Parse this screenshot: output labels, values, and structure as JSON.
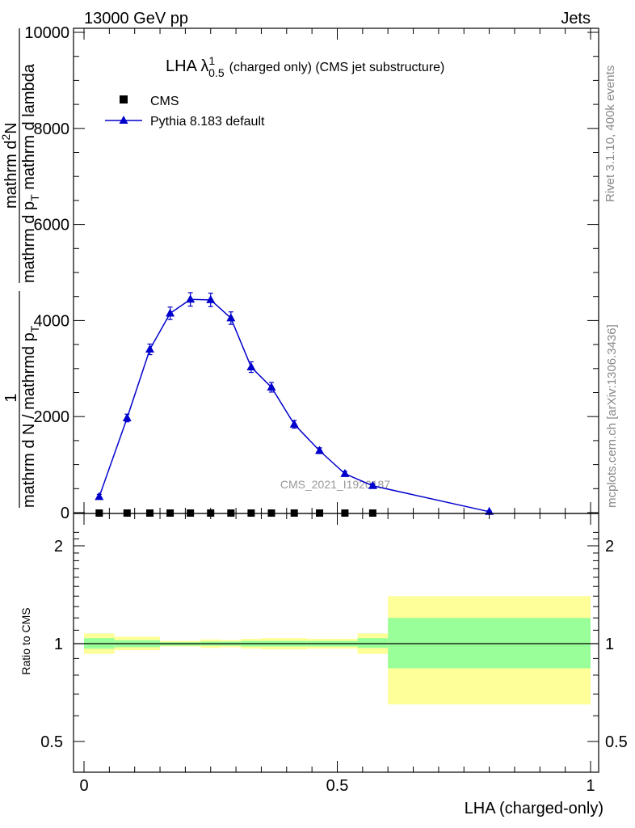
{
  "header": {
    "left": "13000 GeV pp",
    "right": "Jets"
  },
  "side": {
    "rivet": "Rivet 3.1.10,  400k events",
    "mcplots": "mcplots.cern.ch [arXiv:1306.3436]"
  },
  "colors": {
    "mc_line": "#0000cc",
    "band_stat": "#99ff99",
    "band_total": "#ffff99",
    "data_marker": "#000000"
  },
  "chart_data": [
    {
      "type": "line",
      "panel": "main",
      "title_main": "LHA λ",
      "title_sup": "1",
      "title_sub": "0.5",
      "title_rest": "(charged only) (CMS jet substructure)",
      "ylabel_num1": "1",
      "ylabel_den1": "mathrm d N / mathrmd p",
      "ylabel_den1_sub": "T",
      "ylabel_num2": "mathrm d",
      "ylabel_num2_sup": "2",
      "ylabel_num2_rest": "N",
      "ylabel_den2": "mathrm d p",
      "ylabel_den2_sub": "T",
      "ylabel_den2_rest": " mathrm d lambda",
      "ylim": [
        0,
        10000
      ],
      "xlim": [
        0,
        1
      ],
      "yticks": [
        0,
        2000,
        4000,
        6000,
        8000,
        10000
      ],
      "ytick_labels": [
        "0",
        "2000",
        "4000",
        "6000",
        "8000",
        "10000"
      ],
      "watermark": "CMS_2021_I1920187",
      "legend_loc": "top-left",
      "series": [
        {
          "name": "CMS",
          "marker": "square",
          "x": [
            0.03,
            0.085,
            0.13,
            0.17,
            0.21,
            0.25,
            0.29,
            0.33,
            0.37,
            0.415,
            0.465,
            0.515,
            0.57
          ],
          "y": [
            0,
            0,
            0,
            0,
            0,
            0,
            0,
            0,
            0,
            0,
            0,
            0,
            0
          ]
        },
        {
          "name": "Pythia 8.183 default",
          "marker": "triangle",
          "x": [
            0.03,
            0.085,
            0.13,
            0.17,
            0.21,
            0.25,
            0.29,
            0.33,
            0.37,
            0.415,
            0.465,
            0.515,
            0.57,
            0.8
          ],
          "y": [
            330,
            1970,
            3400,
            4150,
            4440,
            4430,
            4050,
            3030,
            2610,
            1840,
            1290,
            810,
            560,
            20
          ],
          "yerr": [
            50,
            80,
            110,
            130,
            140,
            140,
            130,
            110,
            100,
            80,
            60,
            50,
            40,
            20
          ]
        }
      ]
    },
    {
      "type": "area",
      "panel": "ratio",
      "ylabel": "Ratio to CMS",
      "xlabel": "LHA (charged-only)",
      "xlim": [
        0,
        1
      ],
      "ylim": [
        0.4,
        2.3
      ],
      "yscale": "log",
      "yticks": [
        0.5,
        1,
        2
      ],
      "ytick_labels": [
        "0.5",
        "1",
        "2"
      ],
      "xticks": [
        0,
        0.5,
        1
      ],
      "xtick_labels": [
        "0",
        "0.5",
        "1"
      ],
      "reference_line": 1,
      "bands": [
        {
          "x0": 0.0,
          "x1": 0.06,
          "stat": [
            0.965,
            1.04
          ],
          "total": [
            0.93,
            1.075
          ]
        },
        {
          "x0": 0.06,
          "x1": 0.15,
          "stat": [
            0.975,
            1.025
          ],
          "total": [
            0.955,
            1.05
          ]
        },
        {
          "x0": 0.15,
          "x1": 0.23,
          "stat": [
            0.985,
            1.01
          ],
          "total": [
            0.98,
            1.02
          ]
        },
        {
          "x0": 0.23,
          "x1": 0.27,
          "stat": [
            0.985,
            1.015
          ],
          "total": [
            0.97,
            1.03
          ]
        },
        {
          "x0": 0.27,
          "x1": 0.31,
          "stat": [
            0.985,
            1.015
          ],
          "total": [
            0.975,
            1.025
          ]
        },
        {
          "x0": 0.31,
          "x1": 0.35,
          "stat": [
            0.98,
            1.02
          ],
          "total": [
            0.965,
            1.035
          ]
        },
        {
          "x0": 0.35,
          "x1": 0.44,
          "stat": [
            0.98,
            1.02
          ],
          "total": [
            0.96,
            1.04
          ]
        },
        {
          "x0": 0.44,
          "x1": 0.54,
          "stat": [
            0.98,
            1.02
          ],
          "total": [
            0.965,
            1.035
          ]
        },
        {
          "x0": 0.54,
          "x1": 0.6,
          "stat": [
            0.97,
            1.04
          ],
          "total": [
            0.93,
            1.075
          ]
        },
        {
          "x0": 0.6,
          "x1": 1.0,
          "stat": [
            0.84,
            1.2
          ],
          "total": [
            0.65,
            1.4
          ]
        }
      ]
    }
  ]
}
